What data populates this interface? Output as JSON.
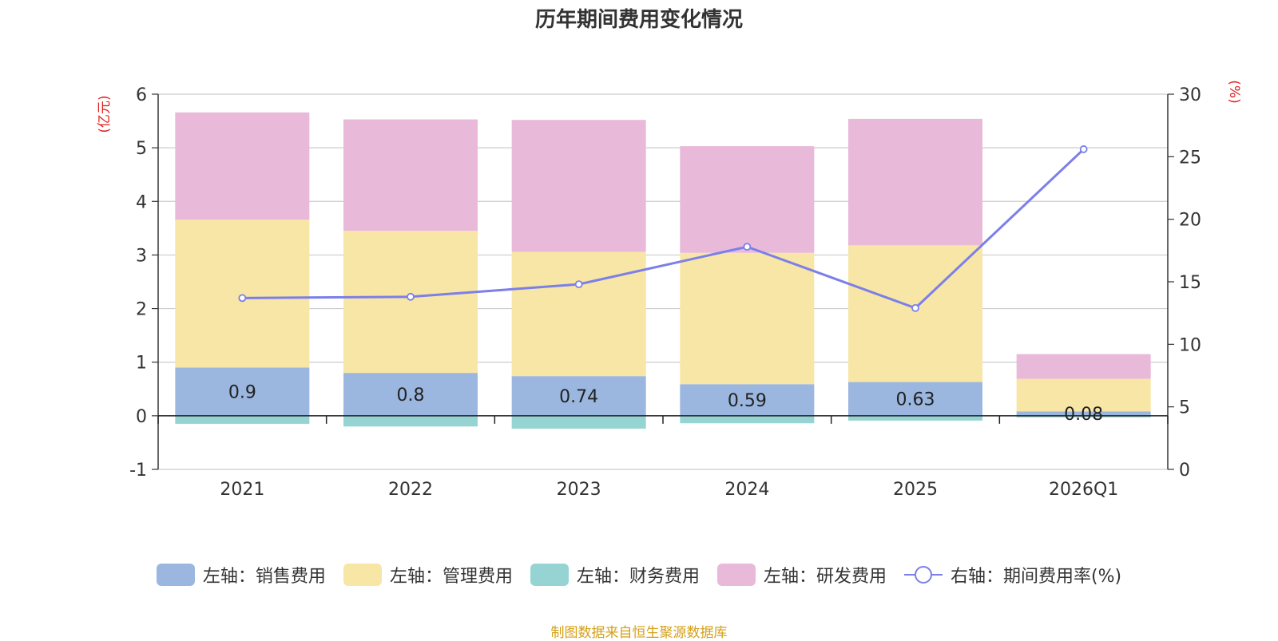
{
  "chart_data": {
    "type": "bar",
    "stacked": true,
    "title": "历年期间费用变化情况",
    "categories": [
      "2021",
      "2022",
      "2023",
      "2024",
      "2025",
      "2026Q1"
    ],
    "left_axis": {
      "unit_label": "(亿元)",
      "range": [
        -1,
        6
      ],
      "ticks": [
        "-1",
        "0",
        "1",
        "2",
        "3",
        "4",
        "5",
        "6"
      ]
    },
    "right_axis": {
      "unit_label": "(%)",
      "range": [
        0,
        30
      ],
      "ticks": [
        "0",
        "5",
        "10",
        "15",
        "20",
        "25",
        "30"
      ]
    },
    "series": [
      {
        "name": "左轴：销售费用",
        "axis": "left",
        "color": "#9bb7e0",
        "values": [
          0.9,
          0.8,
          0.74,
          0.59,
          0.63,
          0.08
        ],
        "labels": [
          "0.9",
          "0.8",
          "0.74",
          "0.59",
          "0.63",
          "0.08"
        ]
      },
      {
        "name": "左轴：管理费用",
        "axis": "left",
        "color": "#f7e6a6",
        "values": [
          2.76,
          2.65,
          2.32,
          2.45,
          2.55,
          0.61
        ]
      },
      {
        "name": "左轴：财务费用",
        "axis": "left",
        "color": "#96d4d4",
        "values": [
          -0.15,
          -0.2,
          -0.24,
          -0.14,
          -0.09,
          -0.03
        ]
      },
      {
        "name": "左轴：研发费用",
        "axis": "left",
        "color": "#e8b9d9",
        "values": [
          2.0,
          2.08,
          2.46,
          1.99,
          2.36,
          0.46
        ]
      },
      {
        "name": "右轴：期间费用率(%)",
        "axis": "right",
        "type": "line",
        "color": "#7b7fe8",
        "values": [
          13.7,
          13.8,
          14.8,
          17.8,
          12.9,
          25.6
        ]
      }
    ]
  },
  "footer": {
    "source": "制图数据来自恒生聚源数据库"
  }
}
